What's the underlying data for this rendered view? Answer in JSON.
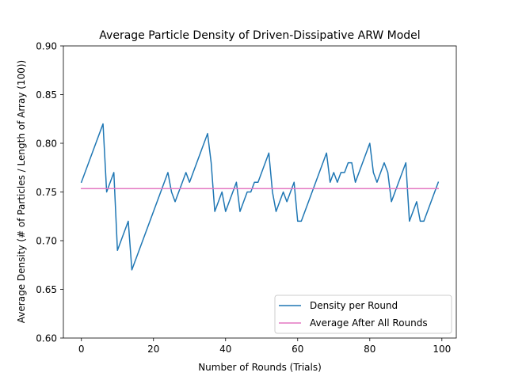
{
  "chart_data": {
    "type": "line",
    "title": "Average Particle Density of Driven-Dissipative ARW Model",
    "xlabel": "Number of Rounds (Trials)",
    "ylabel": "Average Density (# of Particles / Length of Array (100))",
    "xlim": [
      -5,
      104
    ],
    "ylim": [
      0.6,
      0.9
    ],
    "xticks": [
      0,
      20,
      40,
      60,
      80,
      100
    ],
    "yticks": [
      0.6,
      0.65,
      0.7,
      0.75,
      0.8,
      0.85,
      0.9
    ],
    "xtick_labels": [
      "0",
      "20",
      "40",
      "60",
      "80",
      "100"
    ],
    "ytick_labels": [
      "0.60",
      "0.65",
      "0.70",
      "0.75",
      "0.80",
      "0.85",
      "0.90"
    ],
    "grid": false,
    "legend_position": "lower-right",
    "series": [
      {
        "name": "Density per Round",
        "color": "#1f77b4",
        "points": [
          [
            0,
            0.76
          ],
          [
            6,
            0.82
          ],
          [
            7,
            0.75
          ],
          [
            9,
            0.77
          ],
          [
            10,
            0.69
          ],
          [
            13,
            0.72
          ],
          [
            14,
            0.67
          ],
          [
            24,
            0.77
          ],
          [
            25,
            0.75
          ],
          [
            26,
            0.74
          ],
          [
            28,
            0.76
          ],
          [
            29,
            0.77
          ],
          [
            30,
            0.76
          ],
          [
            35,
            0.81
          ],
          [
            36,
            0.78
          ],
          [
            37,
            0.73
          ],
          [
            39,
            0.75
          ],
          [
            40,
            0.73
          ],
          [
            43,
            0.76
          ],
          [
            44,
            0.73
          ],
          [
            46,
            0.75
          ],
          [
            47,
            0.75
          ],
          [
            48,
            0.76
          ],
          [
            49,
            0.76
          ],
          [
            52,
            0.79
          ],
          [
            53,
            0.75
          ],
          [
            54,
            0.73
          ],
          [
            56,
            0.75
          ],
          [
            57,
            0.74
          ],
          [
            59,
            0.76
          ],
          [
            60,
            0.72
          ],
          [
            61,
            0.72
          ],
          [
            68,
            0.79
          ],
          [
            69,
            0.76
          ],
          [
            70,
            0.77
          ],
          [
            71,
            0.76
          ],
          [
            72,
            0.77
          ],
          [
            73,
            0.77
          ],
          [
            74,
            0.78
          ],
          [
            75,
            0.78
          ],
          [
            76,
            0.76
          ],
          [
            80,
            0.8
          ],
          [
            81,
            0.77
          ],
          [
            82,
            0.76
          ],
          [
            84,
            0.78
          ],
          [
            85,
            0.77
          ],
          [
            86,
            0.74
          ],
          [
            89,
            0.77
          ],
          [
            90,
            0.78
          ],
          [
            91,
            0.72
          ],
          [
            93,
            0.74
          ],
          [
            94,
            0.72
          ],
          [
            95,
            0.72
          ],
          [
            99,
            0.76
          ]
        ]
      },
      {
        "name": "Average After All Rounds",
        "color": "#e377c2",
        "points": [
          [
            0,
            0.7535
          ],
          [
            99,
            0.7535
          ]
        ]
      }
    ]
  }
}
